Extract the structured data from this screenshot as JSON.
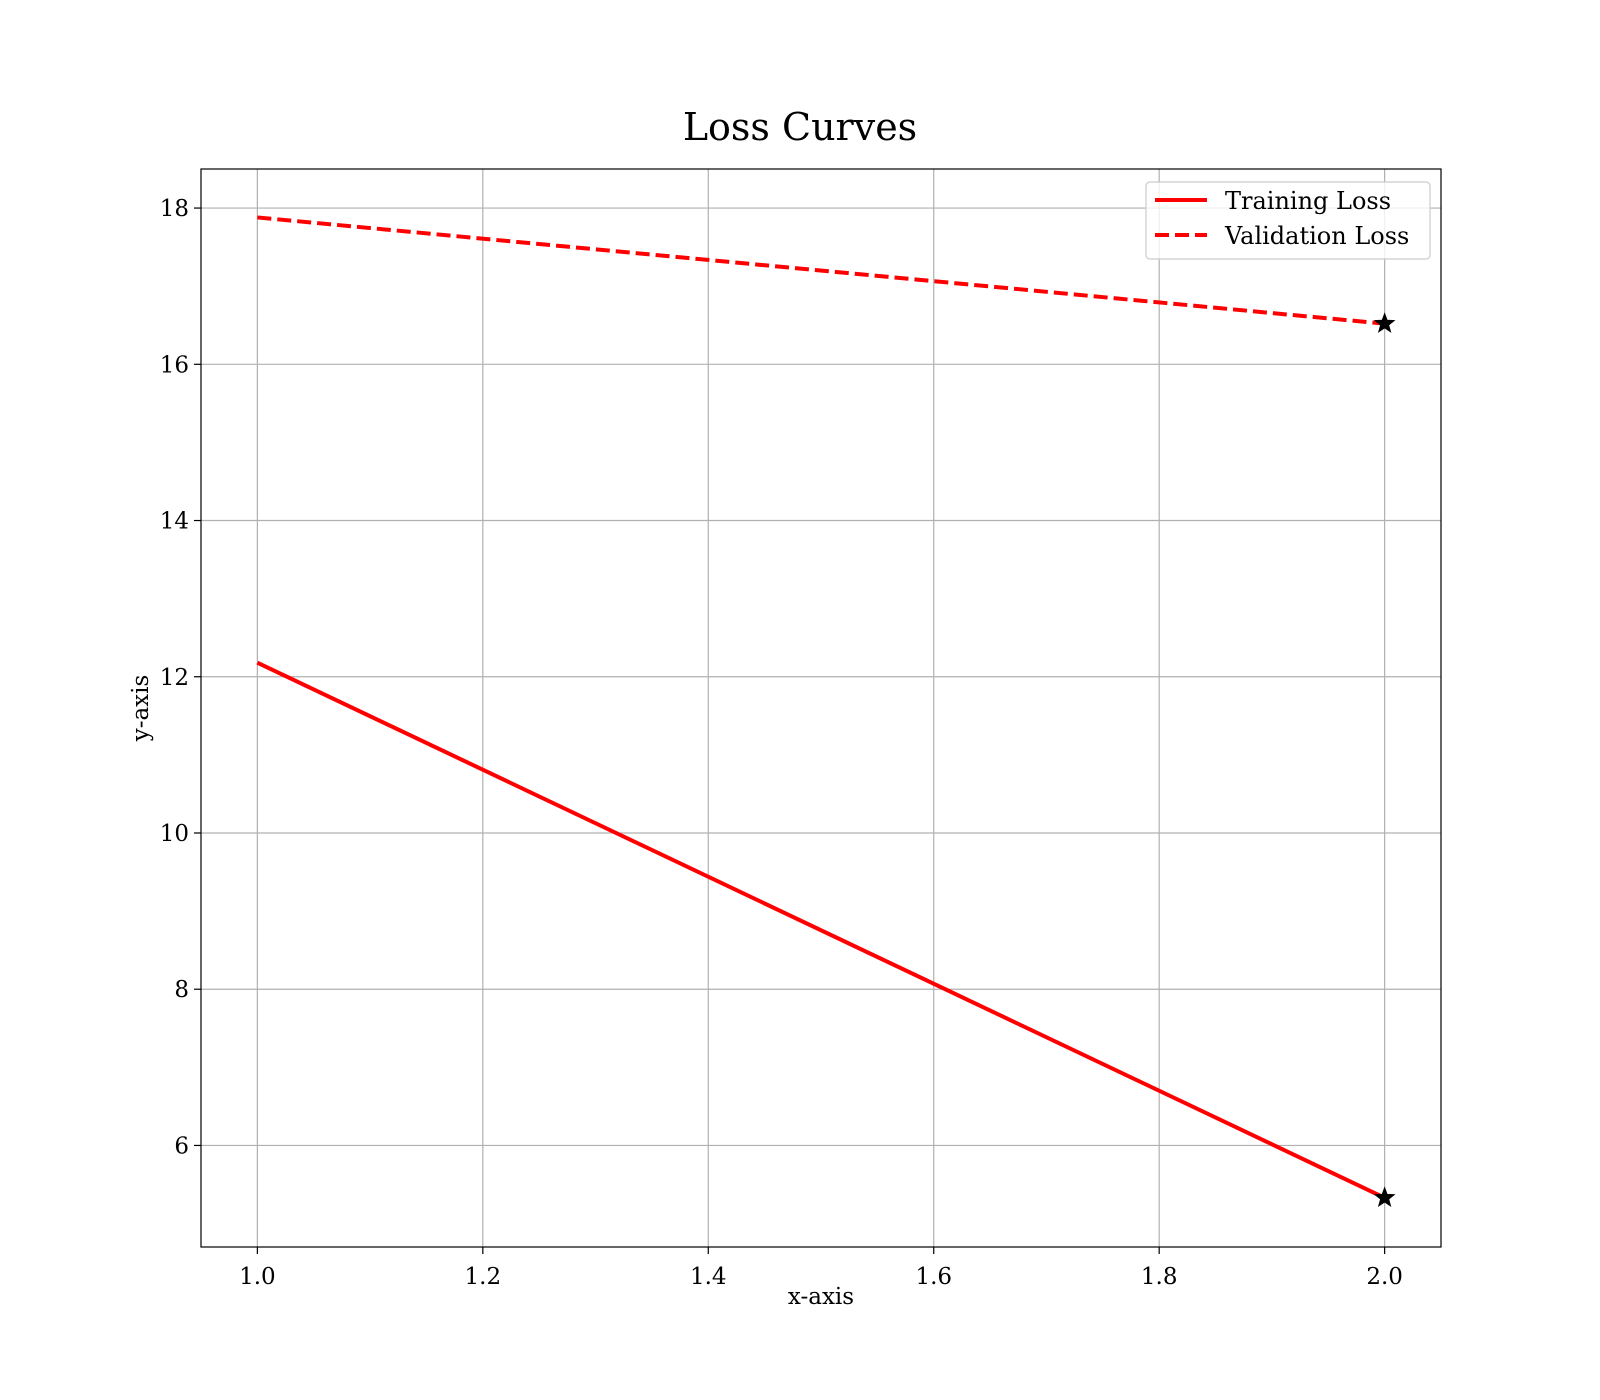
{
  "chart_data": {
    "type": "line",
    "title": "Loss Curves",
    "xlabel": "x-axis",
    "ylabel": "y-axis",
    "xlim": [
      0.95,
      2.05
    ],
    "ylim": [
      4.7,
      18.5
    ],
    "x_ticks": [
      1.0,
      1.2,
      1.4,
      1.6,
      1.8,
      2.0
    ],
    "x_tick_labels": [
      "1.0",
      "1.2",
      "1.4",
      "1.6",
      "1.8",
      "2.0"
    ],
    "y_ticks": [
      6,
      8,
      10,
      12,
      14,
      16,
      18
    ],
    "y_tick_labels": [
      "6",
      "8",
      "10",
      "12",
      "14",
      "16",
      "18"
    ],
    "grid": true,
    "legend_position": "top-right",
    "series": [
      {
        "name": "Training Loss",
        "color": "#ff0000",
        "line_style": "solid",
        "x": [
          1.0,
          2.0
        ],
        "y": [
          12.18,
          5.33
        ],
        "marker_at_end": "star"
      },
      {
        "name": "Validation Loss",
        "color": "#ff0000",
        "line_style": "dashed",
        "x": [
          1.0,
          2.0
        ],
        "y": [
          17.88,
          16.52
        ],
        "marker_at_end": "star"
      }
    ]
  }
}
